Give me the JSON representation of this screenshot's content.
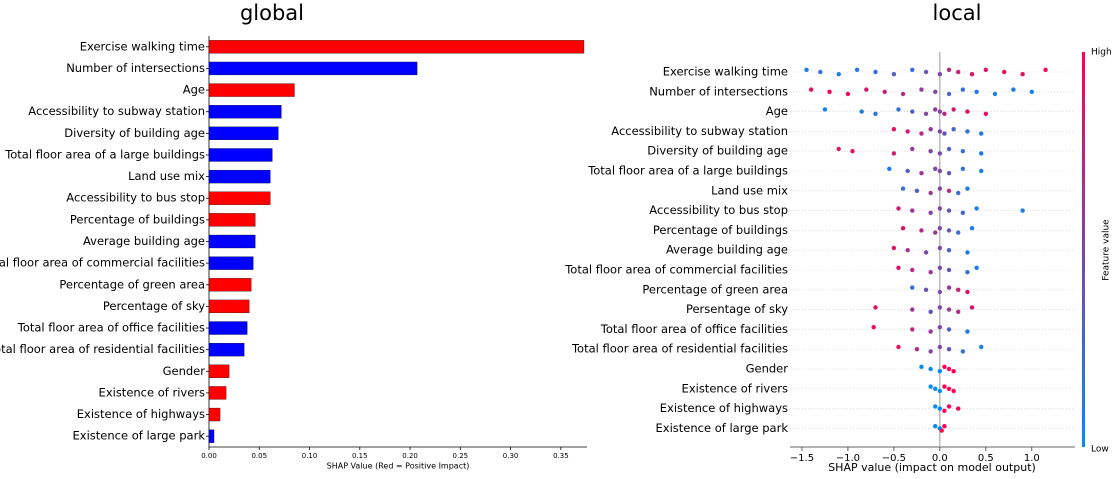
{
  "chart_data": [
    {
      "type": "barh",
      "title": "global",
      "xlabel": "SHAP Value (Red = Positive Impact)",
      "categories": [
        "Exercise walking time",
        "Number of intersections",
        "Age",
        "Accessibility to subway station",
        "Diversity of building age",
        "Total floor area of a large buildings",
        "Land use mix",
        "Accessibility to bus stop",
        "Percentage of buildings",
        "Average building age",
        "Total floor area of commercial facilities",
        "Percentage of green area",
        "Percentage of sky",
        "Total floor area of office facilities",
        "Total floor area of residential facilities",
        "Gender",
        "Existence of rivers",
        "Existence of highways",
        "Existence of large park"
      ],
      "values": [
        0.373,
        0.207,
        0.085,
        0.072,
        0.069,
        0.063,
        0.061,
        0.061,
        0.046,
        0.046,
        0.044,
        0.042,
        0.04,
        0.038,
        0.035,
        0.02,
        0.017,
        0.011,
        0.005
      ],
      "colors": [
        "#ff0000",
        "#0000ff",
        "#ff0000",
        "#0000ff",
        "#0000ff",
        "#0000ff",
        "#0000ff",
        "#ff0000",
        "#ff0000",
        "#0000ff",
        "#0000ff",
        "#ff0000",
        "#ff0000",
        "#0000ff",
        "#0000ff",
        "#ff0000",
        "#ff0000",
        "#ff0000",
        "#0000ff"
      ],
      "xlim": [
        0,
        0.376
      ],
      "xticks": [
        {
          "value": 0,
          "label": "0.00"
        },
        0.05,
        {
          "value": 0.1,
          "label": "0.10"
        },
        0.15,
        {
          "value": 0.2,
          "label": "0.20"
        },
        0.25,
        {
          "value": 0.3,
          "label": "0.30"
        },
        0.35
      ]
    },
    {
      "type": "beeswarm",
      "title": "local",
      "xlabel": "SHAP value (impact on model output)",
      "colorbar_label": "Feature value",
      "colorbar_high": "High",
      "colorbar_low": "Low",
      "cmap": [
        "#008bfb",
        "#ff0052"
      ],
      "xlim": [
        -1.63,
        1.47
      ],
      "xticks": [
        {
          "value": -1.5,
          "label": "−1.5"
        },
        {
          "value": -1,
          "label": "−1.0"
        },
        {
          "value": -0.5,
          "label": "−0.5"
        },
        {
          "value": 0,
          "label": "0.0"
        },
        0.5,
        {
          "value": 1,
          "label": "1.0"
        }
      ],
      "rows": [
        {
          "name": "Exercise walking time",
          "shap": [
            -1.45,
            -1.3,
            -1.1,
            -0.9,
            -0.7,
            -0.5,
            -0.3,
            -0.15,
            0,
            0.1,
            0.2,
            0.35,
            0.5,
            0.7,
            0.9,
            1.15
          ],
          "feature_value": [
            0.1,
            0.2,
            0.1,
            0.15,
            0.2,
            0.3,
            0.2,
            0.4,
            0.5,
            0.7,
            0.8,
            0.9,
            0.85,
            0.9,
            0.95,
            1
          ]
        },
        {
          "name": "Number of intersections",
          "shap": [
            -1.4,
            -1.2,
            -1.0,
            -0.8,
            -0.6,
            -0.4,
            -0.2,
            -0.05,
            0.1,
            0.25,
            0.4,
            0.6,
            0.8,
            1.0
          ],
          "feature_value": [
            0.9,
            1,
            0.9,
            0.85,
            0.8,
            0.7,
            0.6,
            0.5,
            0.3,
            0.2,
            0.15,
            0.1,
            0.1,
            0.05
          ]
        },
        {
          "name": "Age",
          "shap": [
            -1.25,
            -0.85,
            -0.7,
            -0.45,
            -0.3,
            -0.15,
            -0.05,
            0,
            0.05,
            0.15,
            0.3,
            0.5
          ],
          "feature_value": [
            0.1,
            0.1,
            0.2,
            0.2,
            0.3,
            0.5,
            0.6,
            0.5,
            0.7,
            0.8,
            0.9,
            0.9
          ]
        },
        {
          "name": "Accessibility to subway station",
          "shap": [
            -0.5,
            -0.35,
            -0.2,
            -0.1,
            0,
            0.05,
            0.15,
            0.3,
            0.45
          ],
          "feature_value": [
            0.9,
            0.8,
            0.7,
            0.6,
            0.5,
            0.4,
            0.3,
            0.2,
            0.1
          ]
        },
        {
          "name": "Diversity of building age",
          "shap": [
            -1.1,
            -0.95,
            -0.5,
            -0.3,
            -0.1,
            0,
            0.1,
            0.25,
            0.45
          ],
          "feature_value": [
            0.9,
            0.9,
            0.8,
            0.6,
            0.5,
            0.5,
            0.3,
            0.2,
            0.1
          ]
        },
        {
          "name": "Total floor area of a large buildings",
          "shap": [
            -0.55,
            -0.35,
            -0.2,
            -0.05,
            0,
            0.1,
            0.25,
            0.45
          ],
          "feature_value": [
            0.1,
            0.3,
            0.6,
            0.5,
            0.5,
            0.4,
            0.2,
            0.1
          ]
        },
        {
          "name": "Land use mix",
          "shap": [
            -0.4,
            -0.25,
            -0.1,
            0,
            0.1,
            0.2,
            0.3
          ],
          "feature_value": [
            0.2,
            0.3,
            0.6,
            0.5,
            0.7,
            0.2,
            0.1
          ]
        },
        {
          "name": "Accessibility to bus stop",
          "shap": [
            -0.45,
            -0.3,
            -0.1,
            0,
            0.1,
            0.25,
            0.4,
            0.9
          ],
          "feature_value": [
            0.8,
            0.6,
            0.5,
            0.5,
            0.4,
            0.3,
            0.1,
            0.1
          ]
        },
        {
          "name": "Percentage of buildings",
          "shap": [
            -0.4,
            -0.2,
            -0.05,
            0,
            0.1,
            0.2,
            0.35
          ],
          "feature_value": [
            0.9,
            0.7,
            0.6,
            0.5,
            0.4,
            0.2,
            0.1
          ]
        },
        {
          "name": "Average building age",
          "shap": [
            -0.5,
            -0.35,
            -0.15,
            0,
            0.1,
            0.3
          ],
          "feature_value": [
            0.9,
            0.6,
            0.5,
            0.5,
            0.3,
            0.1
          ]
        },
        {
          "name": "Total floor area of commercial facilities",
          "shap": [
            -0.45,
            -0.3,
            -0.1,
            0,
            0.1,
            0.3,
            0.4
          ],
          "feature_value": [
            0.9,
            0.7,
            0.6,
            0.5,
            0.4,
            0.2,
            0.1
          ]
        },
        {
          "name": "Percentage of green area",
          "shap": [
            -0.3,
            -0.15,
            0,
            0.1,
            0.2,
            0.3
          ],
          "feature_value": [
            0.2,
            0.4,
            0.5,
            0.6,
            0.8,
            0.9
          ]
        },
        {
          "name": "Persentage of sky",
          "shap": [
            -0.7,
            -0.3,
            -0.1,
            0,
            0.1,
            0.2,
            0.35
          ],
          "feature_value": [
            0.9,
            0.6,
            0.4,
            0.5,
            0.6,
            0.7,
            0.9
          ]
        },
        {
          "name": "Total floor area of office facilities",
          "shap": [
            -0.72,
            -0.3,
            -0.1,
            0,
            0.1,
            0.3
          ],
          "feature_value": [
            0.9,
            0.7,
            0.6,
            0.5,
            0.3,
            0.1
          ]
        },
        {
          "name": "Total floor area of residential facilities",
          "shap": [
            -0.45,
            -0.25,
            -0.1,
            0,
            0.1,
            0.25,
            0.45
          ],
          "feature_value": [
            0.9,
            0.7,
            0.5,
            0.5,
            0.4,
            0.2,
            0.1
          ]
        },
        {
          "name": "Gender",
          "shap": [
            -0.2,
            -0.1,
            0,
            0.05,
            0.1,
            0.15
          ],
          "feature_value": [
            0,
            0,
            0,
            1,
            1,
            1
          ]
        },
        {
          "name": "Existence of rivers",
          "shap": [
            -0.1,
            -0.05,
            0,
            0.05,
            0.1,
            0.15
          ],
          "feature_value": [
            0,
            0,
            0,
            1,
            1,
            1
          ]
        },
        {
          "name": "Existence of highways",
          "shap": [
            -0.05,
            0,
            0.05,
            0.1,
            0.2
          ],
          "feature_value": [
            0,
            0,
            1,
            1,
            1
          ]
        },
        {
          "name": "Existence of large park",
          "shap": [
            -0.05,
            0,
            0.02,
            0.05
          ],
          "feature_value": [
            0,
            0,
            1,
            1
          ]
        }
      ]
    }
  ]
}
